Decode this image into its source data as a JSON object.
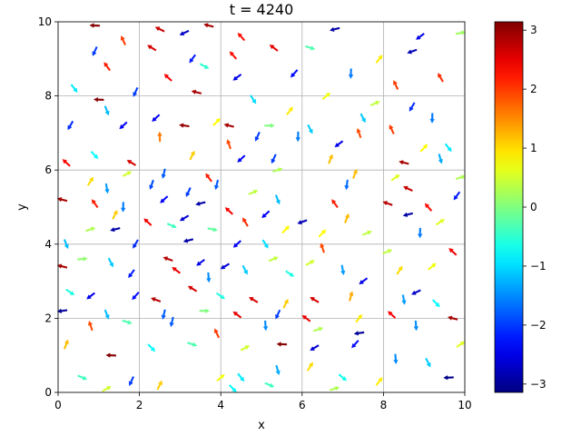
{
  "chart_data": {
    "type": "quiver",
    "title": "t = 4240",
    "xlabel": "x",
    "ylabel": "y",
    "xlim": [
      0,
      10
    ],
    "ylim": [
      0,
      10
    ],
    "xticks": [
      "0",
      "2",
      "4",
      "6",
      "8",
      "10"
    ],
    "yticks": [
      "0",
      "2",
      "4",
      "6",
      "8",
      "10"
    ],
    "grid": true,
    "colorbar": {
      "range": [
        -3.14159,
        3.14159
      ],
      "ticks": [
        "−3",
        "−2",
        "−1",
        "0",
        "1",
        "2",
        "3"
      ],
      "tick_values": [
        -3,
        -2,
        -1,
        0,
        1,
        2,
        3
      ],
      "colormap": "jet"
    },
    "arrows": [
      {
        "x": 0.9,
        "y": 9.9,
        "theta": 3.1
      },
      {
        "x": 2.5,
        "y": 9.8,
        "theta": 2.7
      },
      {
        "x": 3.1,
        "y": 9.7,
        "theta": -2.7
      },
      {
        "x": 3.7,
        "y": 9.9,
        "theta": 2.9
      },
      {
        "x": 4.5,
        "y": 9.6,
        "theta": 2.3
      },
      {
        "x": 6.8,
        "y": 9.8,
        "theta": -2.9
      },
      {
        "x": 8.9,
        "y": 9.6,
        "theta": -2.5
      },
      {
        "x": 9.9,
        "y": 9.7,
        "theta": 0.2
      },
      {
        "x": 0.9,
        "y": 9.2,
        "theta": -2.0
      },
      {
        "x": 1.6,
        "y": 9.5,
        "theta": 2.0
      },
      {
        "x": 2.3,
        "y": 9.3,
        "theta": 2.6
      },
      {
        "x": 3.3,
        "y": 9.0,
        "theta": -2.2
      },
      {
        "x": 4.3,
        "y": 9.1,
        "theta": 2.3
      },
      {
        "x": 5.3,
        "y": 9.3,
        "theta": 2.5
      },
      {
        "x": 6.2,
        "y": 9.3,
        "theta": -0.3
      },
      {
        "x": 7.9,
        "y": 9.0,
        "theta": 0.9
      },
      {
        "x": 8.7,
        "y": 9.2,
        "theta": -2.8
      },
      {
        "x": 1.2,
        "y": 8.8,
        "theta": 2.2
      },
      {
        "x": 2.7,
        "y": 8.5,
        "theta": 2.4
      },
      {
        "x": 3.6,
        "y": 8.8,
        "theta": -0.5
      },
      {
        "x": 4.4,
        "y": 8.5,
        "theta": -2.5
      },
      {
        "x": 5.8,
        "y": 8.6,
        "theta": -2.3
      },
      {
        "x": 7.2,
        "y": 8.6,
        "theta": -1.6
      },
      {
        "x": 8.3,
        "y": 8.3,
        "theta": 2.0
      },
      {
        "x": 9.4,
        "y": 8.5,
        "theta": 2.1
      },
      {
        "x": 0.4,
        "y": 8.2,
        "theta": -0.9
      },
      {
        "x": 1.0,
        "y": 7.9,
        "theta": 3.1
      },
      {
        "x": 1.9,
        "y": 8.1,
        "theta": -2.0
      },
      {
        "x": 3.4,
        "y": 8.1,
        "theta": 2.9
      },
      {
        "x": 4.8,
        "y": 7.9,
        "theta": -1.0
      },
      {
        "x": 6.6,
        "y": 8.0,
        "theta": 0.7
      },
      {
        "x": 7.8,
        "y": 7.8,
        "theta": 0.4
      },
      {
        "x": 8.7,
        "y": 7.7,
        "theta": -2.1
      },
      {
        "x": 1.2,
        "y": 7.6,
        "theta": -1.2
      },
      {
        "x": 2.4,
        "y": 7.4,
        "theta": -2.4
      },
      {
        "x": 3.9,
        "y": 7.3,
        "theta": 0.8
      },
      {
        "x": 5.7,
        "y": 7.6,
        "theta": 0.9
      },
      {
        "x": 7.5,
        "y": 7.4,
        "theta": -1.1
      },
      {
        "x": 9.2,
        "y": 7.4,
        "theta": -1.6
      },
      {
        "x": 0.3,
        "y": 7.2,
        "theta": -2.1
      },
      {
        "x": 1.6,
        "y": 7.2,
        "theta": -2.4
      },
      {
        "x": 3.1,
        "y": 7.2,
        "theta": 3.0
      },
      {
        "x": 4.2,
        "y": 7.2,
        "theta": 2.9
      },
      {
        "x": 5.2,
        "y": 7.2,
        "theta": 0.0
      },
      {
        "x": 6.2,
        "y": 7.1,
        "theta": -1.1
      },
      {
        "x": 7.4,
        "y": 7.0,
        "theta": 1.9
      },
      {
        "x": 8.2,
        "y": 7.1,
        "theta": 2.0
      },
      {
        "x": 2.5,
        "y": 6.9,
        "theta": 1.6
      },
      {
        "x": 4.2,
        "y": 6.7,
        "theta": 1.9
      },
      {
        "x": 4.9,
        "y": 6.9,
        "theta": -2.0
      },
      {
        "x": 5.9,
        "y": 6.9,
        "theta": -1.6
      },
      {
        "x": 6.9,
        "y": 6.7,
        "theta": -2.5
      },
      {
        "x": 9.0,
        "y": 6.6,
        "theta": 0.8
      },
      {
        "x": 9.6,
        "y": 6.6,
        "theta": -0.9
      },
      {
        "x": 0.2,
        "y": 6.2,
        "theta": 2.4
      },
      {
        "x": 0.9,
        "y": 6.4,
        "theta": -0.8
      },
      {
        "x": 1.8,
        "y": 6.2,
        "theta": 2.6
      },
      {
        "x": 3.3,
        "y": 6.4,
        "theta": 1.1
      },
      {
        "x": 4.5,
        "y": 6.3,
        "theta": -2.4
      },
      {
        "x": 5.3,
        "y": 6.3,
        "theta": -2.0
      },
      {
        "x": 6.7,
        "y": 6.3,
        "theta": 1.2
      },
      {
        "x": 8.5,
        "y": 6.2,
        "theta": 2.9
      },
      {
        "x": 9.4,
        "y": 6.3,
        "theta": -1.3
      },
      {
        "x": 0.8,
        "y": 5.7,
        "theta": 1.0
      },
      {
        "x": 1.7,
        "y": 5.9,
        "theta": 0.5
      },
      {
        "x": 2.6,
        "y": 5.9,
        "theta": -1.8
      },
      {
        "x": 3.7,
        "y": 5.8,
        "theta": 2.2
      },
      {
        "x": 5.4,
        "y": 6.0,
        "theta": 0.3
      },
      {
        "x": 7.3,
        "y": 5.9,
        "theta": 1.2
      },
      {
        "x": 8.3,
        "y": 5.8,
        "theta": 0.6
      },
      {
        "x": 9.9,
        "y": 5.8,
        "theta": 0.3
      },
      {
        "x": 1.2,
        "y": 5.5,
        "theta": -1.4
      },
      {
        "x": 2.3,
        "y": 5.6,
        "theta": -1.9
      },
      {
        "x": 3.2,
        "y": 5.4,
        "theta": -2.0
      },
      {
        "x": 3.9,
        "y": 5.6,
        "theta": -1.8
      },
      {
        "x": 4.8,
        "y": 5.4,
        "theta": 0.4
      },
      {
        "x": 7.1,
        "y": 5.6,
        "theta": -1.7
      },
      {
        "x": 8.6,
        "y": 5.5,
        "theta": 2.7
      },
      {
        "x": 9.8,
        "y": 5.3,
        "theta": -2.2
      },
      {
        "x": 0.1,
        "y": 5.2,
        "theta": 2.9
      },
      {
        "x": 0.9,
        "y": 5.1,
        "theta": 2.2
      },
      {
        "x": 1.6,
        "y": 5.0,
        "theta": -1.6
      },
      {
        "x": 2.6,
        "y": 5.2,
        "theta": -2.4
      },
      {
        "x": 3.5,
        "y": 5.1,
        "theta": -2.9
      },
      {
        "x": 4.2,
        "y": 4.9,
        "theta": 2.4
      },
      {
        "x": 5.4,
        "y": 5.2,
        "theta": -1.2
      },
      {
        "x": 6.8,
        "y": 5.1,
        "theta": 2.2
      },
      {
        "x": 8.1,
        "y": 5.1,
        "theta": 2.8
      },
      {
        "x": 9.1,
        "y": 5.0,
        "theta": 2.3
      },
      {
        "x": 1.4,
        "y": 4.8,
        "theta": 1.1
      },
      {
        "x": 2.2,
        "y": 4.6,
        "theta": 2.4
      },
      {
        "x": 3.1,
        "y": 4.7,
        "theta": -2.6
      },
      {
        "x": 4.6,
        "y": 4.6,
        "theta": 2.1
      },
      {
        "x": 5.1,
        "y": 4.8,
        "theta": -2.4
      },
      {
        "x": 6.0,
        "y": 4.6,
        "theta": -2.8
      },
      {
        "x": 7.1,
        "y": 4.7,
        "theta": 1.2
      },
      {
        "x": 8.6,
        "y": 4.8,
        "theta": -2.9
      },
      {
        "x": 9.4,
        "y": 4.6,
        "theta": 0.6
      },
      {
        "x": 0.8,
        "y": 4.4,
        "theta": 0.3
      },
      {
        "x": 1.4,
        "y": 4.4,
        "theta": -2.9
      },
      {
        "x": 2.8,
        "y": 4.5,
        "theta": -0.4
      },
      {
        "x": 3.8,
        "y": 4.4,
        "theta": -0.2
      },
      {
        "x": 5.6,
        "y": 4.4,
        "theta": 0.8
      },
      {
        "x": 6.5,
        "y": 4.3,
        "theta": 0.8
      },
      {
        "x": 7.6,
        "y": 4.3,
        "theta": 0.4
      },
      {
        "x": 8.9,
        "y": 4.3,
        "theta": -1.6
      },
      {
        "x": 0.2,
        "y": 4.0,
        "theta": -1.2
      },
      {
        "x": 1.9,
        "y": 4.0,
        "theta": -2.1
      },
      {
        "x": 3.2,
        "y": 4.1,
        "theta": -2.9
      },
      {
        "x": 4.4,
        "y": 4.0,
        "theta": -2.4
      },
      {
        "x": 5.1,
        "y": 4.0,
        "theta": -1.0
      },
      {
        "x": 6.5,
        "y": 3.9,
        "theta": 1.9
      },
      {
        "x": 8.1,
        "y": 3.8,
        "theta": 0.4
      },
      {
        "x": 9.7,
        "y": 3.8,
        "theta": 2.4
      },
      {
        "x": 0.6,
        "y": 3.6,
        "theta": 0.1
      },
      {
        "x": 1.3,
        "y": 3.5,
        "theta": -1.1
      },
      {
        "x": 2.7,
        "y": 3.6,
        "theta": 2.8
      },
      {
        "x": 3.5,
        "y": 3.5,
        "theta": -2.5
      },
      {
        "x": 4.1,
        "y": 3.4,
        "theta": -2.6
      },
      {
        "x": 5.3,
        "y": 3.6,
        "theta": 0.4
      },
      {
        "x": 6.2,
        "y": 3.5,
        "theta": 0.5
      },
      {
        "x": 7.0,
        "y": 3.3,
        "theta": -1.4
      },
      {
        "x": 8.4,
        "y": 3.3,
        "theta": 1.0
      },
      {
        "x": 9.2,
        "y": 3.4,
        "theta": 0.7
      },
      {
        "x": 0.1,
        "y": 3.4,
        "theta": 2.9
      },
      {
        "x": 1.8,
        "y": 3.2,
        "theta": -2.2
      },
      {
        "x": 2.9,
        "y": 3.3,
        "theta": 2.5
      },
      {
        "x": 3.7,
        "y": 3.1,
        "theta": -1.5
      },
      {
        "x": 4.6,
        "y": 3.3,
        "theta": -1.1
      },
      {
        "x": 5.7,
        "y": 3.2,
        "theta": -0.6
      },
      {
        "x": 7.5,
        "y": 3.0,
        "theta": -2.5
      },
      {
        "x": 8.8,
        "y": 2.7,
        "theta": -2.7
      },
      {
        "x": 0.3,
        "y": 2.7,
        "theta": -0.6
      },
      {
        "x": 0.8,
        "y": 2.6,
        "theta": -2.5
      },
      {
        "x": 1.9,
        "y": 2.6,
        "theta": -2.3
      },
      {
        "x": 2.4,
        "y": 2.5,
        "theta": 2.8
      },
      {
        "x": 3.3,
        "y": 2.8,
        "theta": 2.6
      },
      {
        "x": 4.0,
        "y": 2.6,
        "theta": -0.6
      },
      {
        "x": 4.8,
        "y": 2.5,
        "theta": 2.6
      },
      {
        "x": 5.6,
        "y": 2.4,
        "theta": 1.1
      },
      {
        "x": 6.3,
        "y": 2.5,
        "theta": 2.6
      },
      {
        "x": 7.2,
        "y": 2.6,
        "theta": 1.3
      },
      {
        "x": 8.5,
        "y": 2.5,
        "theta": -1.4
      },
      {
        "x": 9.3,
        "y": 2.4,
        "theta": -0.8
      },
      {
        "x": 0.1,
        "y": 2.2,
        "theta": -3.0
      },
      {
        "x": 1.2,
        "y": 2.1,
        "theta": -1.2
      },
      {
        "x": 2.6,
        "y": 2.1,
        "theta": -1.8
      },
      {
        "x": 3.6,
        "y": 2.2,
        "theta": 0.0
      },
      {
        "x": 4.4,
        "y": 2.1,
        "theta": 2.5
      },
      {
        "x": 5.4,
        "y": 2.1,
        "theta": -2.0
      },
      {
        "x": 6.1,
        "y": 2.0,
        "theta": 2.5
      },
      {
        "x": 7.4,
        "y": 2.0,
        "theta": 0.9
      },
      {
        "x": 8.2,
        "y": 2.1,
        "theta": 2.4
      },
      {
        "x": 9.7,
        "y": 2.0,
        "theta": 2.9
      },
      {
        "x": 0.8,
        "y": 1.8,
        "theta": 1.9
      },
      {
        "x": 1.7,
        "y": 1.9,
        "theta": -0.3
      },
      {
        "x": 2.8,
        "y": 1.9,
        "theta": -1.8
      },
      {
        "x": 3.9,
        "y": 1.6,
        "theta": 2.0
      },
      {
        "x": 5.1,
        "y": 1.8,
        "theta": -1.5
      },
      {
        "x": 6.4,
        "y": 1.7,
        "theta": 0.3
      },
      {
        "x": 7.4,
        "y": 1.6,
        "theta": -3.0
      },
      {
        "x": 8.8,
        "y": 1.8,
        "theta": -1.5
      },
      {
        "x": 0.2,
        "y": 1.3,
        "theta": 1.2
      },
      {
        "x": 1.3,
        "y": 1.0,
        "theta": 3.1
      },
      {
        "x": 2.3,
        "y": 1.2,
        "theta": -0.8
      },
      {
        "x": 3.3,
        "y": 1.3,
        "theta": -0.3
      },
      {
        "x": 4.6,
        "y": 1.2,
        "theta": 0.5
      },
      {
        "x": 5.5,
        "y": 1.3,
        "theta": 3.1
      },
      {
        "x": 6.3,
        "y": 1.2,
        "theta": -2.6
      },
      {
        "x": 7.3,
        "y": 1.3,
        "theta": -2.3
      },
      {
        "x": 8.3,
        "y": 0.9,
        "theta": -1.5
      },
      {
        "x": 9.1,
        "y": 0.8,
        "theta": -1.1
      },
      {
        "x": 9.9,
        "y": 1.3,
        "theta": 0.6
      },
      {
        "x": 0.6,
        "y": 0.4,
        "theta": -0.4
      },
      {
        "x": 1.8,
        "y": 0.3,
        "theta": -2.0
      },
      {
        "x": 2.5,
        "y": 0.2,
        "theta": 1.1
      },
      {
        "x": 4.0,
        "y": 0.4,
        "theta": 0.7
      },
      {
        "x": 4.5,
        "y": 0.4,
        "theta": -0.9
      },
      {
        "x": 5.4,
        "y": 0.6,
        "theta": -1.3
      },
      {
        "x": 6.2,
        "y": 0.7,
        "theta": 1.0
      },
      {
        "x": 7.0,
        "y": 0.4,
        "theta": -0.7
      },
      {
        "x": 7.9,
        "y": 0.3,
        "theta": 0.9
      },
      {
        "x": 9.6,
        "y": 0.4,
        "theta": -3.1
      },
      {
        "x": 1.2,
        "y": 0.1,
        "theta": 0.5
      },
      {
        "x": 4.3,
        "y": 0.1,
        "theta": -0.8
      },
      {
        "x": 5.2,
        "y": 0.2,
        "theta": -0.4
      },
      {
        "x": 6.8,
        "y": 0.1,
        "theta": 0.3
      }
    ]
  }
}
